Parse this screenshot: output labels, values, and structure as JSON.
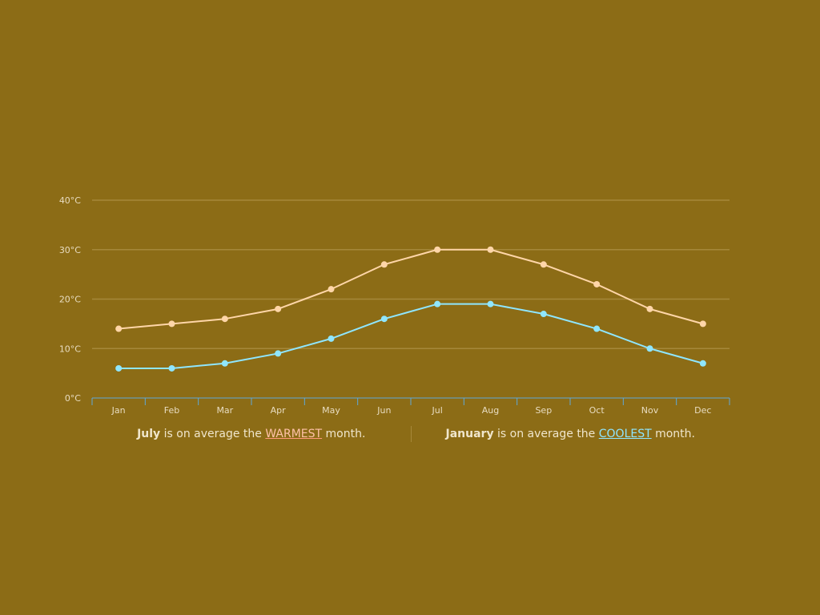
{
  "chart_data": {
    "type": "line",
    "categories": [
      "Jan",
      "Feb",
      "Mar",
      "Apr",
      "May",
      "Jun",
      "Jul",
      "Aug",
      "Sep",
      "Oct",
      "Nov",
      "Dec"
    ],
    "series": [
      {
        "values": [
          14,
          15,
          16,
          18,
          22,
          27,
          30,
          30,
          27,
          23,
          18,
          15
        ],
        "color": "#ffd6a8"
      },
      {
        "values": [
          6,
          6,
          7,
          9,
          12,
          16,
          19,
          19,
          17,
          14,
          10,
          7
        ],
        "color": "#8fe6ff"
      }
    ],
    "ylim": [
      0,
      40
    ],
    "yticks": [
      0,
      10,
      20,
      30,
      40
    ],
    "y_tick_suffix": "°C",
    "grid": true,
    "colors": {
      "background": "#8c6c16",
      "grid": "#a6883a",
      "axis": "#5fa8d8",
      "tick_text": "#e8dcc0"
    }
  },
  "summary": {
    "warm": {
      "month": "July",
      "text_before": " is on average the ",
      "keyword": "WARMEST",
      "text_after": " month.",
      "keyword_color": "#ffc2a8"
    },
    "cool": {
      "month": "January",
      "text_before": " is on average the ",
      "keyword": "COOLEST",
      "text_after": " month.",
      "keyword_color": "#8fe6ff"
    },
    "text_color": "#f0e6cc"
  }
}
